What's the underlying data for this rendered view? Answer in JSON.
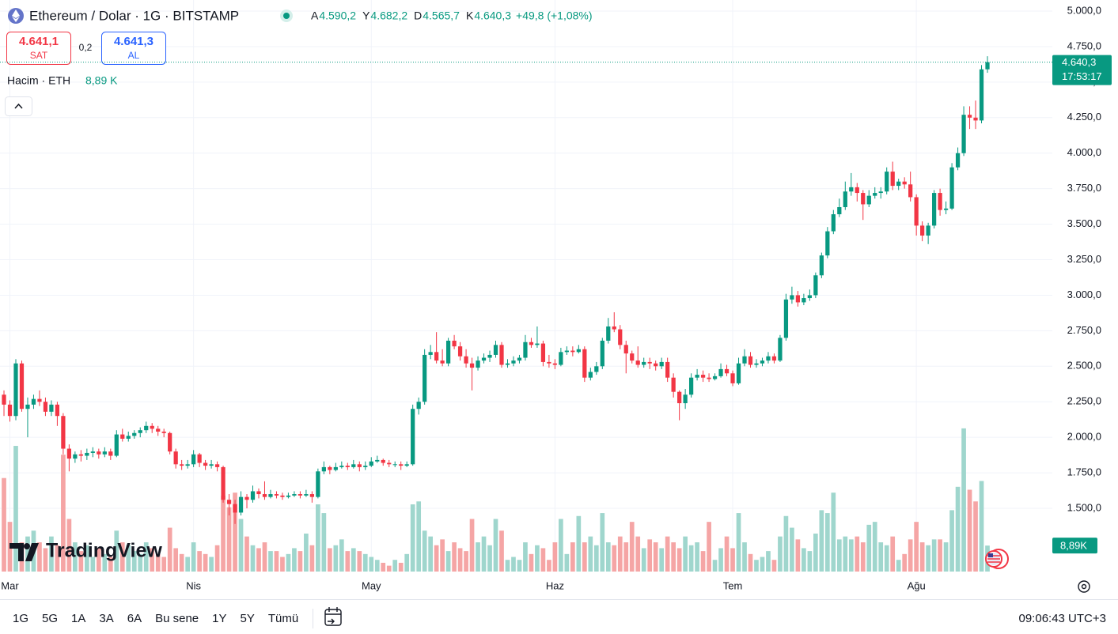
{
  "header": {
    "symbol": "Ethereum / Dolar · 1G · BITSTAMP",
    "ohlc": [
      {
        "key": "A",
        "value": "4.590,2"
      },
      {
        "key": "Y",
        "value": "4.682,2"
      },
      {
        "key": "D",
        "value": "4.565,7"
      },
      {
        "key": "K",
        "value": "4.640,3"
      }
    ],
    "change": "+49,8 (+1,08%)"
  },
  "trade": {
    "sell_price": "4.641,1",
    "sell": "SAT",
    "spread": "0,2",
    "buy_price": "4.641,3",
    "buy": "AL"
  },
  "volume_legend": {
    "label": "Hacim · ETH",
    "value": "8,89 K"
  },
  "watermark": "TradingView",
  "footer": {
    "ranges": [
      "1G",
      "5G",
      "1A",
      "3A",
      "6A",
      "Bu sene",
      "1Y",
      "5Y",
      "Tümü"
    ],
    "time": "09:06:43 UTC+3"
  },
  "chart_data": {
    "type": "candlestick",
    "up_color": "#089981",
    "down_color": "#f23645",
    "volume_up_color": "#9fd6cd",
    "volume_down_color": "#f5a5a5",
    "grid": true,
    "last_price_label": "4.640,3",
    "countdown": "17:53:17",
    "volume_label": "8,89K",
    "xlim": [
      -0.67,
      176.95
    ],
    "xticks": [
      {
        "value": 1,
        "label": "Mar"
      },
      {
        "value": 32,
        "label": "Nis"
      },
      {
        "value": 62,
        "label": "May"
      },
      {
        "value": 93,
        "label": "Haz"
      },
      {
        "value": 123,
        "label": "Tem"
      },
      {
        "value": 154,
        "label": "Ağu"
      }
    ],
    "ylim": [
      1055,
      5078
    ],
    "yticks": [
      {
        "value": 1500,
        "label": "1.500,0"
      },
      {
        "value": 1750,
        "label": "1.750,0"
      },
      {
        "value": 2000,
        "label": "2.000,0"
      },
      {
        "value": 2250,
        "label": "2.250,0"
      },
      {
        "value": 2500,
        "label": "2.500,0"
      },
      {
        "value": 2750,
        "label": "2.750,0"
      },
      {
        "value": 3000,
        "label": "3.000,0"
      },
      {
        "value": 3250,
        "label": "3.250,0"
      },
      {
        "value": 3500,
        "label": "3.500,0"
      },
      {
        "value": 3750,
        "label": "3.750,0"
      },
      {
        "value": 4000,
        "label": "4.000,0"
      },
      {
        "value": 4250,
        "label": "4.250,0"
      },
      {
        "value": 4500,
        "label": "4.500,0"
      },
      {
        "value": 4750,
        "label": "4.750,0"
      },
      {
        "value": 5000,
        "label": "5.000,0"
      }
    ],
    "volume_lim": [
      0,
      56
    ],
    "ohlc": [
      [
        2300,
        2330,
        2150,
        2230
      ],
      [
        2230,
        2260,
        2110,
        2150
      ],
      [
        2150,
        2550,
        2120,
        2520
      ],
      [
        2520,
        2540,
        2180,
        2200
      ],
      [
        2200,
        2280,
        2000,
        2230
      ],
      [
        2230,
        2300,
        2200,
        2270
      ],
      [
        2270,
        2330,
        2220,
        2250
      ],
      [
        2250,
        2280,
        2150,
        2180
      ],
      [
        2180,
        2260,
        2150,
        2230
      ],
      [
        2230,
        2250,
        2080,
        2150
      ],
      [
        2150,
        2170,
        1880,
        1920
      ],
      [
        1920,
        1950,
        1760,
        1850
      ],
      [
        1850,
        1900,
        1820,
        1880
      ],
      [
        1880,
        1910,
        1830,
        1870
      ],
      [
        1870,
        1920,
        1840,
        1890
      ],
      [
        1890,
        1930,
        1860,
        1900
      ],
      [
        1900,
        1920,
        1850,
        1880
      ],
      [
        1880,
        1930,
        1860,
        1900
      ],
      [
        1900,
        1920,
        1840,
        1870
      ],
      [
        1870,
        2050,
        1860,
        2020
      ],
      [
        2020,
        2060,
        1970,
        1990
      ],
      [
        1990,
        2040,
        1970,
        2010
      ],
      [
        2010,
        2050,
        1990,
        2030
      ],
      [
        2030,
        2070,
        2000,
        2050
      ],
      [
        2050,
        2110,
        2030,
        2080
      ],
      [
        2080,
        2100,
        2030,
        2060
      ],
      [
        2060,
        2080,
        2010,
        2040
      ],
      [
        2040,
        2060,
        2000,
        2030
      ],
      [
        2030,
        2040,
        1880,
        1900
      ],
      [
        1900,
        1920,
        1780,
        1810
      ],
      [
        1810,
        1840,
        1770,
        1800
      ],
      [
        1800,
        1840,
        1780,
        1810
      ],
      [
        1810,
        1910,
        1790,
        1880
      ],
      [
        1880,
        1890,
        1790,
        1820
      ],
      [
        1820,
        1840,
        1770,
        1800
      ],
      [
        1800,
        1840,
        1780,
        1810
      ],
      [
        1810,
        1830,
        1760,
        1790
      ],
      [
        1790,
        1800,
        1540,
        1560
      ],
      [
        1560,
        1600,
        1450,
        1530
      ],
      [
        1530,
        1560,
        1390,
        1470
      ],
      [
        1470,
        1620,
        1450,
        1580
      ],
      [
        1580,
        1600,
        1500,
        1560
      ],
      [
        1560,
        1660,
        1540,
        1620
      ],
      [
        1620,
        1640,
        1570,
        1600
      ],
      [
        1600,
        1690,
        1560,
        1580
      ],
      [
        1580,
        1630,
        1570,
        1600
      ],
      [
        1600,
        1620,
        1570,
        1590
      ],
      [
        1590,
        1610,
        1560,
        1580
      ],
      [
        1580,
        1610,
        1570,
        1590
      ],
      [
        1590,
        1620,
        1580,
        1600
      ],
      [
        1600,
        1620,
        1570,
        1590
      ],
      [
        1590,
        1630,
        1580,
        1600
      ],
      [
        1600,
        1620,
        1540,
        1580
      ],
      [
        1580,
        1780,
        1570,
        1760
      ],
      [
        1760,
        1830,
        1740,
        1790
      ],
      [
        1790,
        1800,
        1740,
        1770
      ],
      [
        1770,
        1820,
        1760,
        1790
      ],
      [
        1790,
        1830,
        1780,
        1800
      ],
      [
        1800,
        1820,
        1770,
        1790
      ],
      [
        1790,
        1840,
        1780,
        1810
      ],
      [
        1810,
        1830,
        1760,
        1790
      ],
      [
        1790,
        1830,
        1770,
        1800
      ],
      [
        1800,
        1860,
        1790,
        1830
      ],
      [
        1830,
        1870,
        1820,
        1840
      ],
      [
        1840,
        1850,
        1800,
        1820
      ],
      [
        1820,
        1840,
        1790,
        1810
      ],
      [
        1810,
        1830,
        1790,
        1810
      ],
      [
        1810,
        1830,
        1770,
        1800
      ],
      [
        1800,
        1830,
        1790,
        1810
      ],
      [
        1810,
        2230,
        1800,
        2200
      ],
      [
        2200,
        2280,
        2160,
        2250
      ],
      [
        2250,
        2620,
        2230,
        2580
      ],
      [
        2580,
        2650,
        2550,
        2600
      ],
      [
        2600,
        2740,
        2520,
        2540
      ],
      [
        2540,
        2620,
        2500,
        2520
      ],
      [
        2520,
        2700,
        2500,
        2680
      ],
      [
        2680,
        2720,
        2620,
        2640
      ],
      [
        2640,
        2670,
        2540,
        2570
      ],
      [
        2570,
        2620,
        2490,
        2520
      ],
      [
        2520,
        2560,
        2330,
        2490
      ],
      [
        2490,
        2570,
        2470,
        2540
      ],
      [
        2540,
        2590,
        2520,
        2560
      ],
      [
        2560,
        2610,
        2530,
        2580
      ],
      [
        2580,
        2680,
        2560,
        2650
      ],
      [
        2650,
        2670,
        2490,
        2510
      ],
      [
        2510,
        2550,
        2490,
        2520
      ],
      [
        2520,
        2570,
        2500,
        2540
      ],
      [
        2540,
        2580,
        2520,
        2560
      ],
      [
        2560,
        2720,
        2540,
        2670
      ],
      [
        2670,
        2700,
        2630,
        2650
      ],
      [
        2650,
        2780,
        2630,
        2660
      ],
      [
        2660,
        2680,
        2500,
        2530
      ],
      [
        2530,
        2580,
        2490,
        2520
      ],
      [
        2520,
        2550,
        2480,
        2510
      ],
      [
        2510,
        2630,
        2500,
        2600
      ],
      [
        2600,
        2640,
        2580,
        2610
      ],
      [
        2610,
        2640,
        2570,
        2600
      ],
      [
        2600,
        2650,
        2590,
        2620
      ],
      [
        2620,
        2640,
        2390,
        2420
      ],
      [
        2420,
        2490,
        2400,
        2460
      ],
      [
        2460,
        2530,
        2440,
        2500
      ],
      [
        2500,
        2700,
        2480,
        2680
      ],
      [
        2680,
        2840,
        2660,
        2780
      ],
      [
        2780,
        2880,
        2740,
        2760
      ],
      [
        2760,
        2790,
        2620,
        2650
      ],
      [
        2650,
        2680,
        2450,
        2590
      ],
      [
        2590,
        2610,
        2520,
        2540
      ],
      [
        2540,
        2640,
        2490,
        2510
      ],
      [
        2510,
        2560,
        2490,
        2530
      ],
      [
        2530,
        2560,
        2480,
        2520
      ],
      [
        2520,
        2540,
        2470,
        2500
      ],
      [
        2500,
        2560,
        2480,
        2530
      ],
      [
        2530,
        2560,
        2390,
        2420
      ],
      [
        2420,
        2450,
        2280,
        2320
      ],
      [
        2320,
        2330,
        2120,
        2240
      ],
      [
        2240,
        2340,
        2200,
        2300
      ],
      [
        2300,
        2450,
        2280,
        2420
      ],
      [
        2420,
        2480,
        2400,
        2440
      ],
      [
        2440,
        2470,
        2390,
        2420
      ],
      [
        2420,
        2450,
        2390,
        2410
      ],
      [
        2410,
        2450,
        2400,
        2430
      ],
      [
        2430,
        2520,
        2420,
        2480
      ],
      [
        2480,
        2510,
        2430,
        2450
      ],
      [
        2450,
        2470,
        2360,
        2380
      ],
      [
        2380,
        2560,
        2370,
        2520
      ],
      [
        2520,
        2620,
        2500,
        2570
      ],
      [
        2570,
        2600,
        2490,
        2510
      ],
      [
        2510,
        2550,
        2490,
        2520
      ],
      [
        2520,
        2560,
        2500,
        2540
      ],
      [
        2540,
        2600,
        2520,
        2570
      ],
      [
        2570,
        2590,
        2520,
        2540
      ],
      [
        2540,
        2720,
        2530,
        2700
      ],
      [
        2700,
        3010,
        2680,
        2970
      ],
      [
        2970,
        3060,
        2940,
        3000
      ],
      [
        3000,
        3030,
        2920,
        2950
      ],
      [
        2950,
        3010,
        2930,
        2980
      ],
      [
        2980,
        3040,
        2960,
        3000
      ],
      [
        3000,
        3160,
        2980,
        3140
      ],
      [
        3140,
        3300,
        3120,
        3280
      ],
      [
        3280,
        3480,
        3260,
        3450
      ],
      [
        3450,
        3600,
        3430,
        3570
      ],
      [
        3570,
        3680,
        3550,
        3620
      ],
      [
        3620,
        3800,
        3600,
        3730
      ],
      [
        3730,
        3860,
        3700,
        3760
      ],
      [
        3760,
        3790,
        3660,
        3720
      ],
      [
        3720,
        3740,
        3530,
        3640
      ],
      [
        3640,
        3740,
        3620,
        3700
      ],
      [
        3700,
        3760,
        3680,
        3720
      ],
      [
        3720,
        3760,
        3680,
        3730
      ],
      [
        3730,
        3900,
        3710,
        3870
      ],
      [
        3870,
        3940,
        3740,
        3770
      ],
      [
        3770,
        3820,
        3740,
        3800
      ],
      [
        3800,
        3830,
        3750,
        3780
      ],
      [
        3780,
        3870,
        3660,
        3690
      ],
      [
        3690,
        3710,
        3420,
        3490
      ],
      [
        3490,
        3520,
        3380,
        3420
      ],
      [
        3420,
        3510,
        3360,
        3490
      ],
      [
        3490,
        3740,
        3470,
        3720
      ],
      [
        3720,
        3750,
        3560,
        3600
      ],
      [
        3600,
        3660,
        3570,
        3610
      ],
      [
        3610,
        3930,
        3600,
        3900
      ],
      [
        3900,
        4040,
        3880,
        4000
      ],
      [
        4000,
        4330,
        3980,
        4270
      ],
      [
        4270,
        4330,
        4170,
        4250
      ],
      [
        4250,
        4370,
        4170,
        4230
      ],
      [
        4230,
        4620,
        4210,
        4590
      ],
      [
        4590.2,
        4682.2,
        4565.7,
        4640.3
      ]
    ],
    "volume": [
      32,
      17,
      43,
      10,
      12,
      14,
      10,
      8,
      12,
      9,
      40,
      18,
      10,
      7,
      9,
      5,
      8,
      6,
      5,
      14,
      10,
      9,
      7,
      6,
      10,
      8,
      6,
      5,
      15,
      8,
      6,
      5,
      10,
      7,
      6,
      5,
      9,
      26,
      22,
      27,
      18,
      12,
      9,
      8,
      10,
      7,
      7,
      5,
      6,
      8,
      7,
      13,
      9,
      23,
      20,
      8,
      9,
      11,
      7,
      8,
      7,
      6,
      5,
      4,
      3,
      2,
      4,
      3,
      6,
      23,
      24,
      14,
      12,
      9,
      11,
      7,
      10,
      8,
      7,
      18,
      10,
      12,
      9,
      18,
      14,
      4,
      5,
      4,
      10,
      6,
      9,
      8,
      4,
      10,
      18,
      6,
      10,
      19,
      10,
      12,
      9,
      20,
      10,
      9,
      12,
      10,
      17,
      12,
      8,
      11,
      10,
      8,
      12,
      10,
      8,
      12,
      9,
      10,
      7,
      17,
      4,
      8,
      12,
      8,
      20,
      10,
      6,
      4,
      5,
      7,
      4,
      12,
      19,
      15,
      11,
      8,
      7,
      13,
      21,
      20,
      27,
      11,
      12,
      11,
      12,
      10,
      16,
      17,
      10,
      9,
      12,
      4,
      6,
      11,
      17,
      10,
      9,
      11,
      11,
      10,
      21,
      29,
      49,
      28,
      24,
      31,
      8.89
    ]
  }
}
